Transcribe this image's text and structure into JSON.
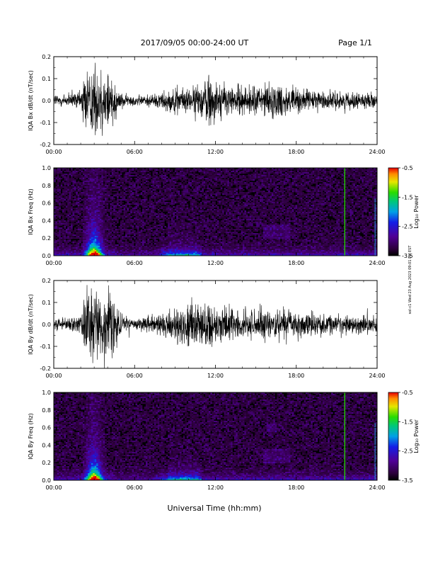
{
  "header": {
    "title": "2017/09/05  00:00-24:00 UT",
    "page": "Page 1/1"
  },
  "side_stamp": "sol-c1 Wed 23 Aug 2023 09:01 PM EST",
  "footer": {
    "xlabel": "Universal Time (hh:mm)"
  },
  "chart_data": [
    {
      "type": "line",
      "name": "IQA Bx dB/dt",
      "ylabel": "IQA Bx dB/dt (nT/sec)",
      "ylim": [
        -0.2,
        0.2
      ],
      "yticks": [
        "0.2",
        "0.1",
        "0.0",
        "-0.1",
        "-0.2"
      ],
      "xticks": [
        "00:00",
        "06:00",
        "12:00",
        "18:00",
        "24:00"
      ],
      "xlim": [
        0,
        24
      ],
      "x_unit": "hours UT",
      "amplitude_envelope": {
        "x": [
          0,
          1,
          2,
          2.3,
          2.5,
          3,
          3.5,
          4,
          4.3,
          4.8,
          5.5,
          6.5,
          7.5,
          8,
          9,
          10,
          11,
          11.5,
          12,
          12.5,
          13,
          14,
          15,
          16,
          17,
          18,
          19,
          20,
          21,
          22,
          23,
          24
        ],
        "values": [
          0.05,
          0.045,
          0.06,
          0.22,
          0.22,
          0.22,
          0.22,
          0.22,
          0.2,
          0.06,
          0.035,
          0.035,
          0.045,
          0.06,
          0.08,
          0.08,
          0.11,
          0.2,
          0.12,
          0.12,
          0.1,
          0.09,
          0.1,
          0.11,
          0.11,
          0.08,
          0.07,
          0.06,
          0.06,
          0.05,
          0.05,
          0.04
        ]
      }
    },
    {
      "type": "heatmap",
      "name": "IQA Bx Freq",
      "ylabel": "IQA Bx Freq (Hz)",
      "ylim": [
        0,
        1.0
      ],
      "yticks": [
        "1.0",
        "0.8",
        "0.6",
        "0.4",
        "0.2",
        "0.0"
      ],
      "xticks": [
        "00:00",
        "06:00",
        "12:00",
        "18:00",
        "24:00"
      ],
      "xlim": [
        0,
        24
      ],
      "colorbar": {
        "label": "Log₁₀ Power",
        "ticks": [
          "-0.5",
          "-1.5",
          "-2.5",
          "-3.5"
        ],
        "range": [
          -3.5,
          -0.5
        ]
      }
    },
    {
      "type": "line",
      "name": "IQA By dB/dt",
      "ylabel": "IQA By dB/dt (nT/sec)",
      "ylim": [
        -0.2,
        0.2
      ],
      "yticks": [
        "0.2",
        "0.1",
        "0.0",
        "-0.1",
        "-0.2"
      ],
      "xticks": [
        "00:00",
        "06:00",
        "12:00",
        "18:00",
        "24:00"
      ],
      "xlim": [
        0,
        24
      ],
      "x_unit": "hours UT",
      "amplitude_envelope": {
        "x": [
          0,
          1,
          2,
          2.3,
          2.5,
          3,
          3.5,
          4,
          4.3,
          4.8,
          5.5,
          6.5,
          7.5,
          8,
          9,
          10,
          11,
          11.5,
          12,
          12.5,
          13,
          14,
          15,
          16,
          17,
          18,
          19,
          20,
          21,
          22,
          23,
          24
        ],
        "values": [
          0.05,
          0.04,
          0.07,
          0.22,
          0.22,
          0.22,
          0.22,
          0.22,
          0.22,
          0.08,
          0.04,
          0.04,
          0.06,
          0.08,
          0.12,
          0.16,
          0.11,
          0.18,
          0.12,
          0.12,
          0.11,
          0.1,
          0.1,
          0.11,
          0.1,
          0.08,
          0.08,
          0.07,
          0.06,
          0.06,
          0.06,
          0.05
        ]
      }
    },
    {
      "type": "heatmap",
      "name": "IQA By Freq",
      "ylabel": "IQA By Freq (Hz)",
      "ylim": [
        0,
        1.0
      ],
      "yticks": [
        "1.0",
        "0.8",
        "0.6",
        "0.4",
        "0.2",
        "0.0"
      ],
      "xticks": [
        "00:00",
        "06:00",
        "12:00",
        "18:00",
        "24:00"
      ],
      "xlim": [
        0,
        24
      ],
      "colorbar": {
        "label": "Log₁₀ Power",
        "ticks": [
          "-0.5",
          "-1.5",
          "-2.5",
          "-3.5"
        ],
        "range": [
          -3.5,
          -0.5
        ]
      }
    }
  ]
}
